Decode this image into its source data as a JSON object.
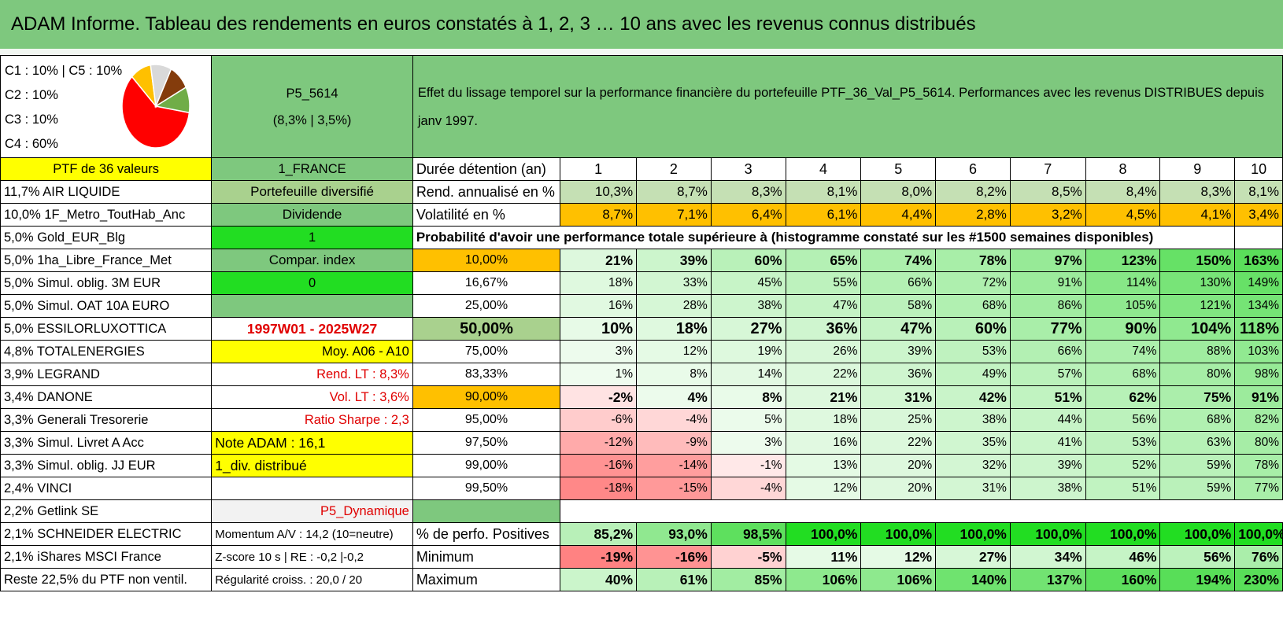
{
  "title": "ADAM Informe. Tableau des rendements en euros constatés à 1, 2, 3 … 10 ans avec les revenus connus distribués",
  "legend": [
    "C1 : 10% | C5 : 10%",
    "C2 : 10%",
    "C3 : 10%",
    "C4 : 60%"
  ],
  "pie": {
    "slices": [
      {
        "label": "C4",
        "value": 60,
        "color": "#ff0000"
      },
      {
        "label": "C1",
        "value": 10,
        "color": "#ffc000"
      },
      {
        "label": "C5",
        "value": 10,
        "color": "#d9d9d9"
      },
      {
        "label": "C2",
        "value": 10,
        "color": "#843c0c"
      },
      {
        "label": "C3",
        "value": 10,
        "color": "#70ad47"
      }
    ]
  },
  "portfolio": {
    "code": "P5_5614",
    "stats": "(8,3% | 3,5%)"
  },
  "description": "Effet du lissage temporel sur la performance financière du portefeuille PTF_36_Val_P5_5614. Performances avec les revenus DISTRIBUES depuis janv 1997.",
  "ptf_header": "PTF de 36 valeurs",
  "region": "1_FRANCE",
  "duration_label": "Durée détention (an)",
  "years": [
    "1",
    "2",
    "3",
    "4",
    "5",
    "6",
    "7",
    "8",
    "9",
    "10"
  ],
  "holdings": [
    "11,7% AIR LIQUIDE",
    "10,0% 1F_Metro_ToutHab_Anc",
    "5,0% Gold_EUR_Blg",
    "5,0% 1ha_Libre_France_Met",
    "5,0% Simul. oblig. 3M EUR",
    "5,0% Simul. OAT 10A EURO",
    "5,0% ESSILORLUXOTTICA",
    "4,8% TOTALENERGIES",
    "3,9% LEGRAND",
    "3,4% DANONE",
    "3,3% Generali Tresorerie",
    "3,3% Simul. Livret A Acc",
    "3,3% Simul. oblig. JJ EUR",
    "2,4% VINCI",
    "2,2% Getlink SE",
    "2,1% SCHNEIDER ELECTRIC",
    "2,1% iShares MSCI France",
    "Reste 22,5% du PTF non ventil."
  ],
  "info": [
    "Portefeuille diversifié",
    "Dividende",
    "1",
    "Compar. index",
    "0",
    "",
    "1997W01 - 2025W27",
    "Moy. A06 - A10",
    "Rend. LT : 8,3%",
    "Vol. LT : 3,6%",
    "Ratio Sharpe : 2,3",
    "Note ADAM : 16,1",
    "1_div. distribué",
    "",
    "P5_Dynamique",
    "Momentum A/V : 14,2 (10=neutre)",
    "Z-score 10 s | RE : -0,2 |-0,2",
    "Régularité croiss. : 20,0 / 20"
  ],
  "rend": {
    "label": "Rend. annualisé en %",
    "values": [
      "10,3%",
      "8,7%",
      "8,3%",
      "8,1%",
      "8,0%",
      "8,2%",
      "8,5%",
      "8,4%",
      "8,3%",
      "8,1%"
    ]
  },
  "vol": {
    "label": "Volatilité en %",
    "values": [
      "8,7%",
      "7,1%",
      "6,4%",
      "6,1%",
      "4,4%",
      "2,8%",
      "3,2%",
      "4,5%",
      "4,1%",
      "3,4%"
    ]
  },
  "prob_header": "Probabilité d'avoir une performance totale supérieure à (histogramme constaté sur les #1500 semaines disponibles)",
  "prob_rows": [
    {
      "p": "10,00%",
      "v": [
        "21%",
        "39%",
        "60%",
        "65%",
        "74%",
        "78%",
        "97%",
        "123%",
        "150%",
        "163%"
      ]
    },
    {
      "p": "16,67%",
      "v": [
        "18%",
        "33%",
        "45%",
        "55%",
        "66%",
        "72%",
        "91%",
        "114%",
        "130%",
        "149%"
      ]
    },
    {
      "p": "25,00%",
      "v": [
        "16%",
        "28%",
        "38%",
        "47%",
        "58%",
        "68%",
        "86%",
        "105%",
        "121%",
        "134%"
      ]
    },
    {
      "p": "50,00%",
      "v": [
        "10%",
        "18%",
        "27%",
        "36%",
        "47%",
        "60%",
        "77%",
        "90%",
        "104%",
        "118%"
      ]
    },
    {
      "p": "75,00%",
      "v": [
        "3%",
        "12%",
        "19%",
        "26%",
        "39%",
        "53%",
        "66%",
        "74%",
        "88%",
        "103%"
      ]
    },
    {
      "p": "83,33%",
      "v": [
        "1%",
        "8%",
        "14%",
        "22%",
        "36%",
        "49%",
        "57%",
        "68%",
        "80%",
        "98%"
      ]
    },
    {
      "p": "90,00%",
      "v": [
        "-2%",
        "4%",
        "8%",
        "21%",
        "31%",
        "42%",
        "51%",
        "62%",
        "75%",
        "91%"
      ]
    },
    {
      "p": "95,00%",
      "v": [
        "-6%",
        "-4%",
        "5%",
        "18%",
        "25%",
        "38%",
        "44%",
        "56%",
        "68%",
        "82%"
      ]
    },
    {
      "p": "97,50%",
      "v": [
        "-12%",
        "-9%",
        "3%",
        "16%",
        "22%",
        "35%",
        "41%",
        "53%",
        "63%",
        "80%"
      ]
    },
    {
      "p": "99,00%",
      "v": [
        "-16%",
        "-14%",
        "-1%",
        "13%",
        "20%",
        "32%",
        "39%",
        "52%",
        "59%",
        "78%"
      ]
    },
    {
      "p": "99,50%",
      "v": [
        "-18%",
        "-15%",
        "-4%",
        "12%",
        "20%",
        "31%",
        "38%",
        "51%",
        "59%",
        "77%"
      ]
    }
  ],
  "positives": {
    "label": "% de perfo. Positives",
    "values": [
      "85,2%",
      "93,0%",
      "98,5%",
      "100,0%",
      "100,0%",
      "100,0%",
      "100,0%",
      "100,0%",
      "100,0%",
      "100,0%"
    ]
  },
  "minimum": {
    "label": "Minimum",
    "values": [
      "-19%",
      "-16%",
      "-5%",
      "11%",
      "12%",
      "27%",
      "34%",
      "46%",
      "56%",
      "76%"
    ]
  },
  "maximum": {
    "label": "Maximum",
    "values": [
      "40%",
      "61%",
      "85%",
      "106%",
      "106%",
      "140%",
      "137%",
      "160%",
      "194%",
      "230%"
    ]
  }
}
